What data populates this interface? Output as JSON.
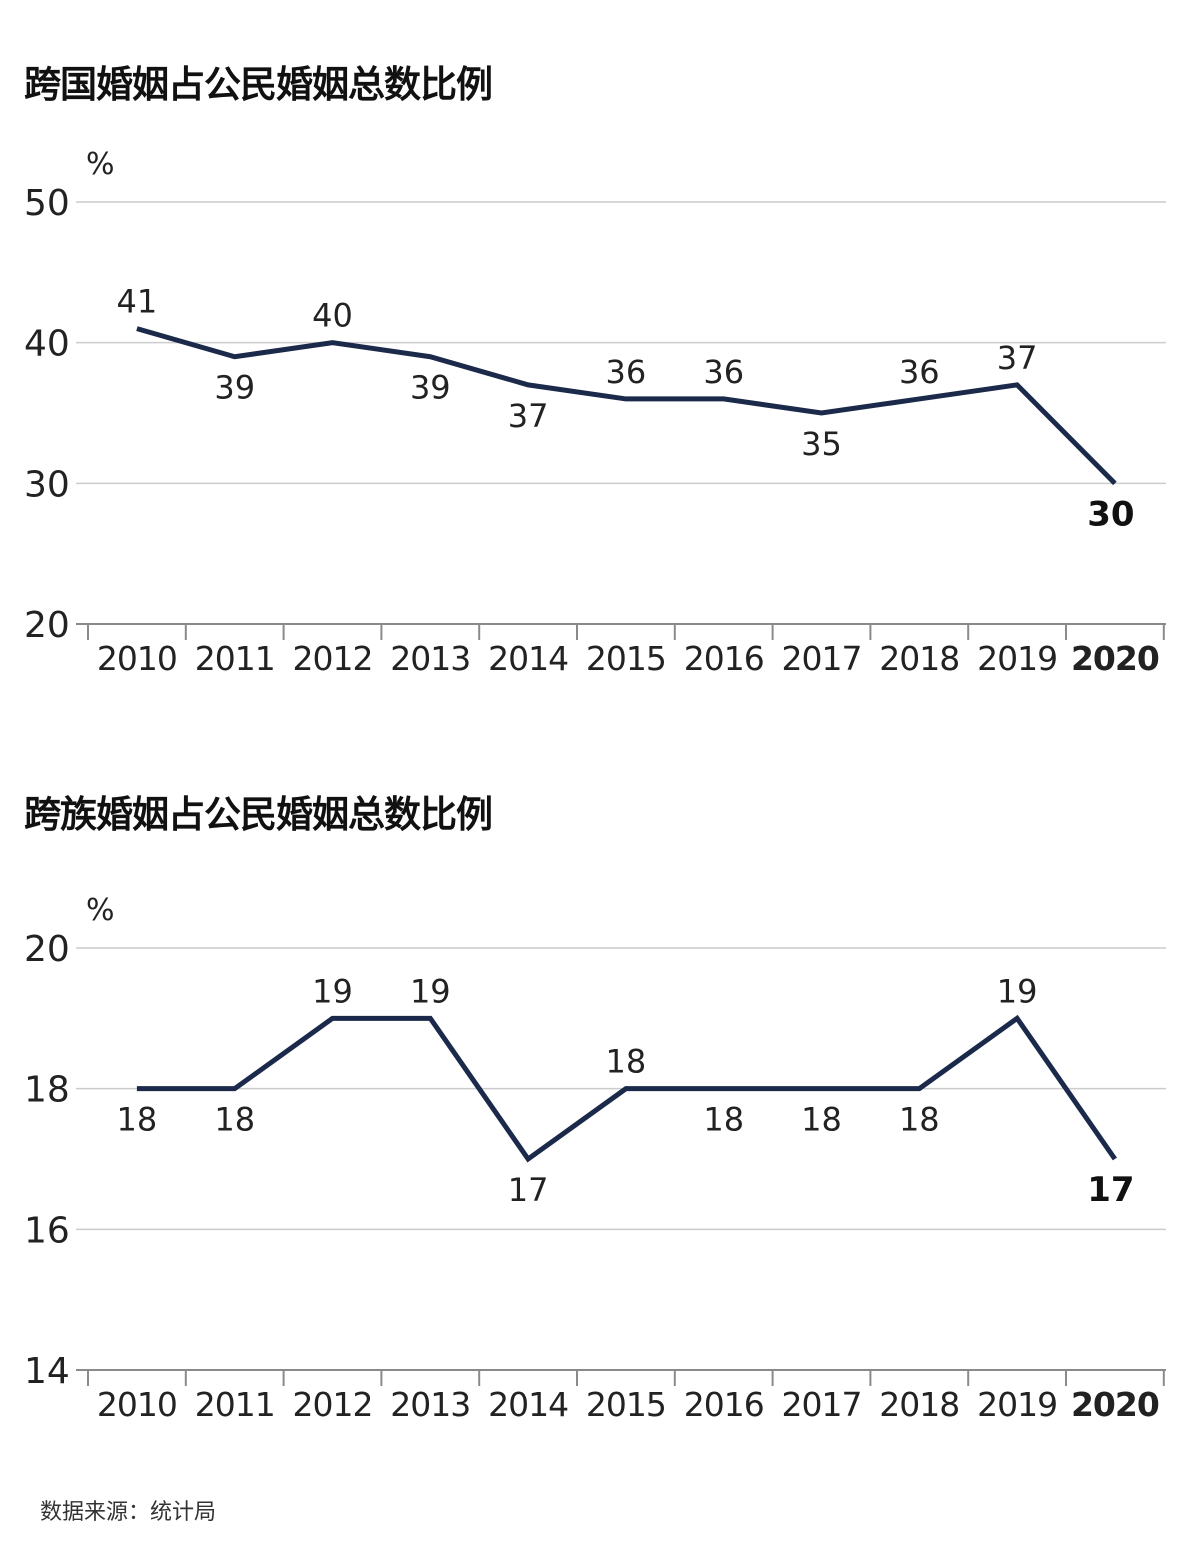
{
  "colors": {
    "line": "#1b2a4a",
    "grid": "#cccccc",
    "axis": "#8a8a8a",
    "text": "#222222"
  },
  "source": "数据来源：统计局",
  "chart_data": [
    {
      "type": "line",
      "title": "跨国婚姻占公民婚姻总数比例",
      "unit": "%",
      "x": [
        "2010",
        "2011",
        "2012",
        "2013",
        "2014",
        "2015",
        "2016",
        "2017",
        "2018",
        "2019",
        "2020"
      ],
      "values": [
        41,
        39,
        40,
        39,
        37,
        36,
        36,
        35,
        36,
        37,
        30
      ],
      "value_labels": [
        "41",
        "39",
        "40",
        "39",
        "37",
        "36",
        "36",
        "35",
        "36",
        "37",
        "30"
      ],
      "label_position": [
        "above",
        "below",
        "above",
        "below",
        "below",
        "above",
        "above",
        "below",
        "above",
        "above",
        "below"
      ],
      "yticks": [
        "20",
        "30",
        "40",
        "50"
      ],
      "ylim": [
        20,
        50
      ],
      "highlight_last": true,
      "grid": true,
      "legend": "none"
    },
    {
      "type": "line",
      "title": "跨族婚姻占公民婚姻总数比例",
      "unit": "%",
      "x": [
        "2010",
        "2011",
        "2012",
        "2013",
        "2014",
        "2015",
        "2016",
        "2017",
        "2018",
        "2019",
        "2020"
      ],
      "values": [
        18,
        18,
        19,
        19,
        17,
        18,
        18,
        18,
        18,
        19,
        17
      ],
      "value_labels": [
        "18",
        "18",
        "19",
        "19",
        "17",
        "18",
        "18",
        "18",
        "18",
        "19",
        "17"
      ],
      "label_position": [
        "below",
        "below",
        "above",
        "above",
        "below",
        "above",
        "below",
        "below",
        "below",
        "above",
        "below"
      ],
      "yticks": [
        "14",
        "16",
        "18",
        "20"
      ],
      "ylim": [
        14,
        20
      ],
      "highlight_last": true,
      "grid": true,
      "legend": "none"
    }
  ]
}
